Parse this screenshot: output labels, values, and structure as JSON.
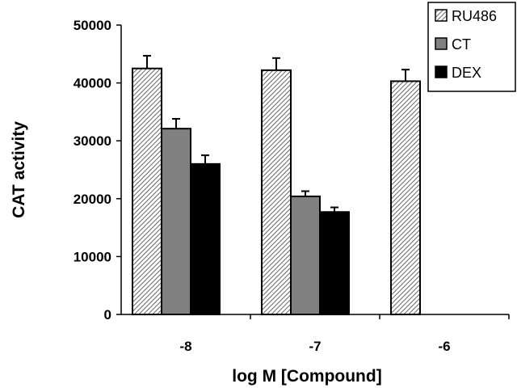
{
  "chart_data": {
    "type": "bar",
    "title": "",
    "xlabel": "log M [Compound]",
    "ylabel": "CAT activity",
    "ylim": [
      0,
      50000
    ],
    "yticks": [
      0,
      10000,
      20000,
      30000,
      40000,
      50000
    ],
    "categories": [
      "-8",
      "-7",
      "-6"
    ],
    "grid": false,
    "legend_position": "top-right",
    "series": [
      {
        "name": "RU486",
        "pattern": "diagonal-hatch",
        "values": [
          42500,
          42200,
          40300
        ],
        "errors": [
          2200,
          2100,
          2000
        ]
      },
      {
        "name": "CT",
        "color": "#808080",
        "values": [
          32100,
          20400,
          null
        ],
        "errors": [
          1700,
          900,
          null
        ]
      },
      {
        "name": "DEX",
        "color": "#000000",
        "values": [
          26000,
          17700,
          null
        ],
        "errors": [
          1500,
          800,
          null
        ]
      }
    ]
  }
}
